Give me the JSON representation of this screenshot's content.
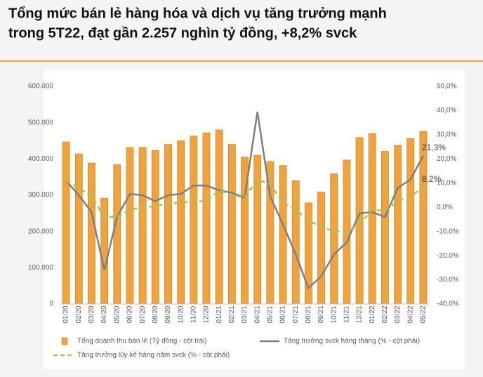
{
  "title_lines": [
    "Tổng mức bán lẻ hàng hóa và dịch vụ tăng trưởng mạnh",
    "trong 5T22, đạt gần 2.257 nghìn tỷ đồng, +8,2% svck"
  ],
  "chart_data": {
    "type": "bar",
    "categories": [
      "01/20",
      "02/20",
      "03/20",
      "04/20",
      "05/20",
      "06/20",
      "07/20",
      "08/20",
      "09/20",
      "10/20",
      "11/20",
      "12/20",
      "01/21",
      "02/21",
      "03/21",
      "04/21",
      "05/21",
      "06/21",
      "07/21",
      "08/21",
      "09/21",
      "10/21",
      "11/21",
      "12/21",
      "01/22",
      "02/22",
      "03/22",
      "04/22",
      "05/22"
    ],
    "series": [
      {
        "name": "Tổng doanh thu bán lẻ (Tỷ đồng - cột trái)",
        "type": "bar",
        "color": "#f0a23c",
        "values": [
          447000,
          414000,
          389000,
          292000,
          384000,
          431000,
          432000,
          423000,
          440000,
          450000,
          463000,
          472000,
          480000,
          440000,
          405000,
          410000,
          393000,
          382000,
          340000,
          279000,
          309000,
          359000,
          397000,
          459000,
          470000,
          421000,
          437000,
          456000,
          476000
        ]
      },
      {
        "name": "Tăng trưởng svck hàng tháng (% - cột phải)",
        "type": "line",
        "axis": "y2",
        "color": "#7f7f7f",
        "values": [
          11,
          5,
          -2,
          -26,
          -4,
          5.5,
          5,
          2.5,
          5,
          5.5,
          9,
          9,
          7,
          6,
          4,
          39.5,
          4.5,
          -7,
          -19.5,
          -33.5,
          -28.5,
          -19.5,
          -14.5,
          -2.5,
          -2,
          -4,
          8,
          11.5,
          21.3
        ],
        "value_labels": [
          null,
          null,
          null,
          null,
          null,
          null,
          null,
          null,
          null,
          null,
          null,
          null,
          null,
          null,
          null,
          null,
          null,
          null,
          null,
          null,
          null,
          null,
          null,
          null,
          null,
          null,
          null,
          null,
          "21,3%"
        ]
      },
      {
        "name": "Tăng trưởng lũy kế hàng năm svck (% - cột phải)",
        "type": "line",
        "axis": "y2",
        "style": "dashed",
        "color": "#a3c552",
        "values": [
          11,
          8,
          4.5,
          -4,
          -4,
          -1,
          0,
          0.5,
          1.5,
          2,
          2.5,
          2.5,
          7,
          5,
          4,
          11.5,
          9.5,
          2,
          -1,
          -5.5,
          -8,
          -10,
          -10,
          -7,
          -1,
          -1.5,
          2.5,
          4.5,
          8.2
        ],
        "value_labels": [
          null,
          null,
          null,
          null,
          null,
          null,
          null,
          null,
          null,
          null,
          null,
          null,
          null,
          null,
          null,
          null,
          null,
          null,
          null,
          null,
          null,
          null,
          null,
          null,
          null,
          null,
          null,
          null,
          "8,2%"
        ]
      }
    ],
    "ylim": [
      0,
      600000
    ],
    "yticks": [
      0,
      {
        "value": 100000,
        "label": "100.000"
      },
      {
        "value": 200000,
        "label": "200.000"
      },
      {
        "value": 300000,
        "label": "300.000"
      },
      {
        "value": 400000,
        "label": "400.000"
      },
      {
        "value": 500000,
        "label": "500.000"
      },
      {
        "value": 600000,
        "label": "600.000"
      }
    ],
    "y2lim": [
      -40,
      50
    ],
    "y2ticks": [
      {
        "value": -40,
        "label": "-40,0%"
      },
      {
        "value": -30,
        "label": "-30,0%"
      },
      {
        "value": -20,
        "label": "-20,0%"
      },
      {
        "value": -10,
        "label": "-10,0%"
      },
      {
        "value": 0,
        "label": "0,0%"
      },
      {
        "value": 10,
        "label": "10,0%"
      },
      {
        "value": 20,
        "label": "20,0%"
      },
      {
        "value": 30,
        "label": "30,0%"
      },
      {
        "value": 40,
        "label": "40,0%"
      },
      {
        "value": 50,
        "label": "50,0%"
      }
    ],
    "grid": false
  }
}
